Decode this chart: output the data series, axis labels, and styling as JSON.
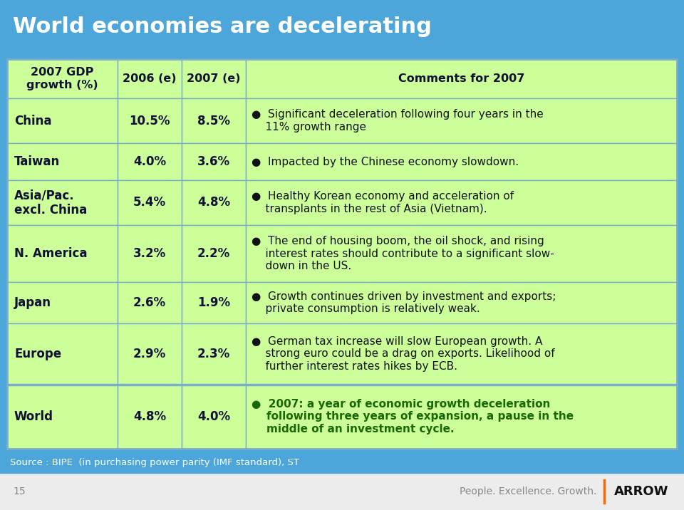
{
  "title": "World economies are decelerating",
  "title_color": "#FFFFFF",
  "bg_color": "#4DA6D9",
  "table_bg": "#CCFF99",
  "table_border_color": "#7AADCC",
  "footer_text": "Source : BIPE  (in purchasing power parity (IMF standard), ST",
  "footer_text_color": "#FFFFFF",
  "bottom_left": "15",
  "bottom_center": "People. Excellence. Growth.",
  "header_row": [
    "2007 GDP\ngrowth (%)",
    "2006 (e)",
    "2007 (e)",
    "Comments for 2007"
  ],
  "rows": [
    {
      "region": "China",
      "gdp2006": "10.5%",
      "gdp2007": "8.5%",
      "comment": "●  Significant deceleration following four years in the\n    11% growth range"
    },
    {
      "region": "Taiwan",
      "gdp2006": "4.0%",
      "gdp2007": "3.6%",
      "comment": "●  Impacted by the Chinese economy slowdown."
    },
    {
      "region": "Asia/Pac.\nexcl. China",
      "gdp2006": "5.4%",
      "gdp2007": "4.8%",
      "comment": "●  Healthy Korean economy and acceleration of\n    transplants in the rest of Asia (Vietnam)."
    },
    {
      "region": "N. America",
      "gdp2006": "3.2%",
      "gdp2007": "2.2%",
      "comment": "●  The end of housing boom, the oil shock, and rising\n    interest rates should contribute to a significant slow-\n    down in the US."
    },
    {
      "region": "Japan",
      "gdp2006": "2.6%",
      "gdp2007": "1.9%",
      "comment": "●  Growth continues driven by investment and exports;\n    private consumption is relatively weak."
    },
    {
      "region": "Europe",
      "gdp2006": "2.9%",
      "gdp2007": "2.3%",
      "comment": "●  German tax increase will slow European growth. A\n    strong euro could be a drag on exports. Likelihood of\n    further interest rates hikes by ECB."
    }
  ],
  "world_row": {
    "region": "World",
    "gdp2006": "4.8%",
    "gdp2007": "4.0%",
    "comment": "●  2007: a year of economic growth deceleration\n    following three years of expansion, a pause in the\n    middle of an investment cycle."
  },
  "world_comment_color": "#1A6600",
  "text_color": "#111111",
  "num_color": "#111111"
}
